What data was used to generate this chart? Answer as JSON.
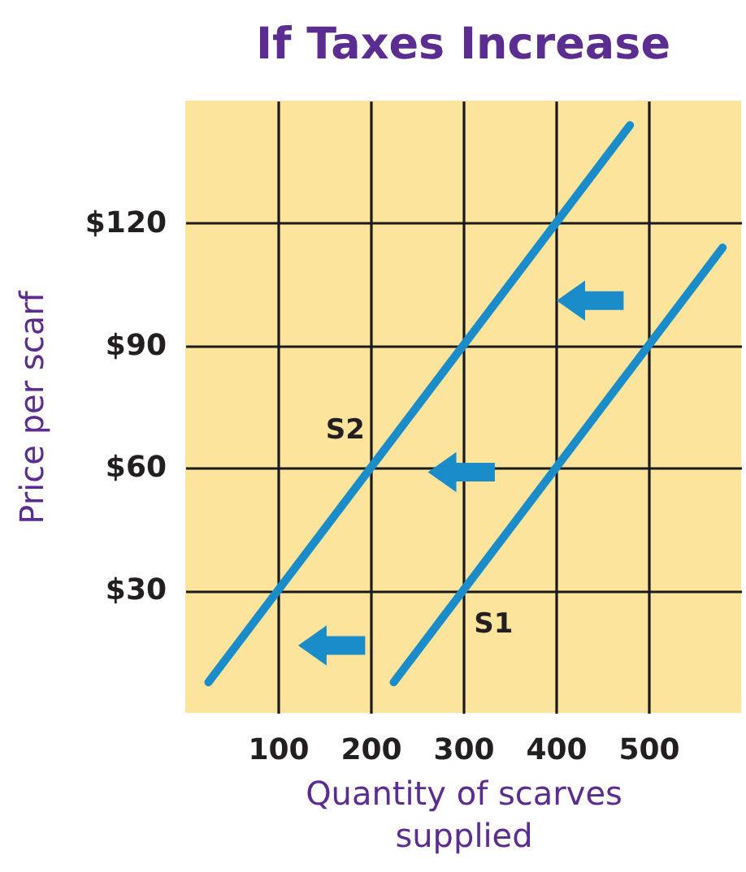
{
  "chart_data": {
    "type": "line",
    "title": "If Taxes Increase",
    "xlabel": "Quantity of scarves supplied",
    "ylabel": "Price per scarf",
    "series": [
      {
        "name": "S2",
        "x": [
          25,
          480
        ],
        "values": [
          7.5,
          144
        ],
        "color": "#1a8cc9"
      },
      {
        "name": "S1",
        "x": [
          225,
          580
        ],
        "values": [
          7.5,
          114
        ],
        "color": "#1a8cc9"
      }
    ],
    "xlim": [
      0,
      600
    ],
    "xticks": [
      100,
      200,
      300,
      400,
      500
    ],
    "ylim": [
      0,
      150
    ],
    "yticks": [
      {
        "value": 30,
        "label": "$30"
      },
      {
        "value": 60,
        "label": "$60"
      },
      {
        "value": 90,
        "label": "$90"
      },
      {
        "value": 120,
        "label": "$120"
      }
    ],
    "grid": true,
    "marker": "none",
    "line_style": "solid"
  }
}
